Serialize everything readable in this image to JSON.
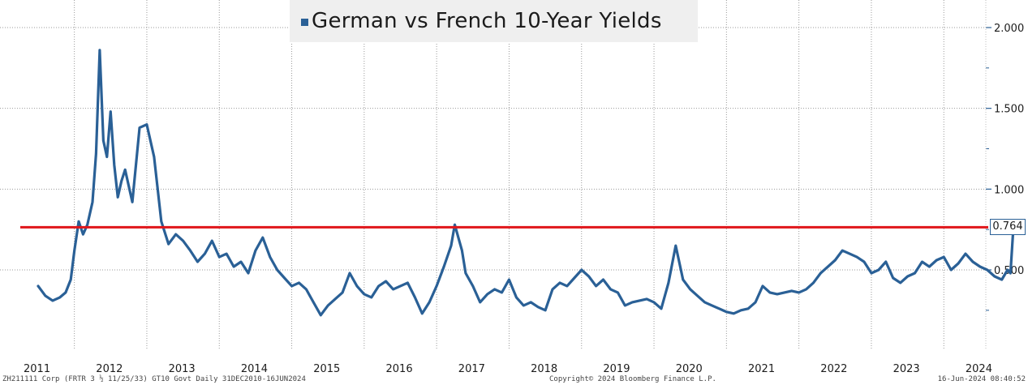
{
  "chart_data": {
    "type": "line",
    "title": "German vs French 10-Year Yields",
    "y_axis_side": "right",
    "ylim": [
      0.0,
      2.1
    ],
    "yticks": [
      "2.000",
      "1.500",
      "1.000",
      "0.500"
    ],
    "ytick_values": [
      2.0,
      1.5,
      1.0,
      0.5
    ],
    "xticks": [
      "2011",
      "2012",
      "2013",
      "2014",
      "2015",
      "2016",
      "2017",
      "2018",
      "2019",
      "2020",
      "2021",
      "2022",
      "2023",
      "2024"
    ],
    "grid": true,
    "reference_line": {
      "value": 0.764,
      "label": "0.764",
      "color": "#e0161a"
    },
    "series": [
      {
        "color": "#2a6096",
        "x": [
          2011.0,
          2011.1,
          2011.2,
          2011.3,
          2011.38,
          2011.45,
          2011.5,
          2011.56,
          2011.62,
          2011.68,
          2011.75,
          2011.8,
          2011.85,
          2011.9,
          2011.95,
          2012.0,
          2012.05,
          2012.1,
          2012.15,
          2012.2,
          2012.3,
          2012.4,
          2012.5,
          2012.6,
          2012.7,
          2012.8,
          2012.9,
          2013.0,
          2013.1,
          2013.2,
          2013.3,
          2013.4,
          2013.5,
          2013.6,
          2013.7,
          2013.8,
          2013.9,
          2014.0,
          2014.1,
          2014.2,
          2014.3,
          2014.4,
          2014.5,
          2014.6,
          2014.7,
          2014.8,
          2014.9,
          2015.0,
          2015.1,
          2015.2,
          2015.3,
          2015.4,
          2015.5,
          2015.6,
          2015.7,
          2015.8,
          2015.9,
          2016.0,
          2016.1,
          2016.2,
          2016.3,
          2016.4,
          2016.5,
          2016.6,
          2016.7,
          2016.75,
          2016.8,
          2016.85,
          2016.9,
          2017.0,
          2017.1,
          2017.2,
          2017.3,
          2017.4,
          2017.5,
          2017.6,
          2017.7,
          2017.8,
          2017.9,
          2018.0,
          2018.1,
          2018.2,
          2018.3,
          2018.4,
          2018.5,
          2018.6,
          2018.7,
          2018.8,
          2018.9,
          2019.0,
          2019.1,
          2019.2,
          2019.3,
          2019.4,
          2019.5,
          2019.6,
          2019.7,
          2019.8,
          2019.9,
          2020.0,
          2020.1,
          2020.2,
          2020.3,
          2020.4,
          2020.5,
          2020.6,
          2020.7,
          2020.8,
          2020.9,
          2021.0,
          2021.1,
          2021.2,
          2021.3,
          2021.4,
          2021.5,
          2021.6,
          2021.7,
          2021.8,
          2021.9,
          2022.0,
          2022.1,
          2022.2,
          2022.3,
          2022.4,
          2022.5,
          2022.6,
          2022.7,
          2022.8,
          2022.9,
          2023.0,
          2023.1,
          2023.2,
          2023.3,
          2023.4,
          2023.5,
          2023.6,
          2023.7,
          2023.8,
          2023.9,
          2024.0,
          2024.1,
          2024.2,
          2024.3,
          2024.38,
          2024.42,
          2024.46
        ],
        "values": [
          0.4,
          0.34,
          0.31,
          0.33,
          0.36,
          0.44,
          0.62,
          0.8,
          0.72,
          0.78,
          0.92,
          1.22,
          1.86,
          1.3,
          1.2,
          1.48,
          1.15,
          0.95,
          1.05,
          1.12,
          0.92,
          1.38,
          1.4,
          1.2,
          0.8,
          0.66,
          0.72,
          0.68,
          0.62,
          0.55,
          0.6,
          0.68,
          0.58,
          0.6,
          0.52,
          0.55,
          0.48,
          0.62,
          0.7,
          0.58,
          0.5,
          0.45,
          0.4,
          0.42,
          0.38,
          0.3,
          0.22,
          0.28,
          0.32,
          0.36,
          0.48,
          0.4,
          0.35,
          0.33,
          0.4,
          0.43,
          0.38,
          0.4,
          0.42,
          0.33,
          0.23,
          0.3,
          0.4,
          0.52,
          0.65,
          0.78,
          0.7,
          0.62,
          0.48,
          0.4,
          0.3,
          0.35,
          0.38,
          0.36,
          0.44,
          0.33,
          0.28,
          0.3,
          0.27,
          0.25,
          0.38,
          0.42,
          0.4,
          0.45,
          0.5,
          0.46,
          0.4,
          0.44,
          0.38,
          0.36,
          0.28,
          0.3,
          0.31,
          0.32,
          0.3,
          0.26,
          0.42,
          0.65,
          0.44,
          0.38,
          0.34,
          0.3,
          0.28,
          0.26,
          0.24,
          0.23,
          0.25,
          0.26,
          0.3,
          0.4,
          0.36,
          0.35,
          0.36,
          0.37,
          0.36,
          0.38,
          0.42,
          0.48,
          0.52,
          0.56,
          0.62,
          0.6,
          0.58,
          0.55,
          0.48,
          0.5,
          0.55,
          0.45,
          0.42,
          0.46,
          0.48,
          0.55,
          0.52,
          0.56,
          0.58,
          0.5,
          0.54,
          0.6,
          0.55,
          0.52,
          0.5,
          0.46,
          0.44,
          0.5,
          0.48,
          0.764
        ]
      }
    ]
  },
  "footer": {
    "left": "ZH211111 Corp (FRTR 3 ½ 11/25/33) GT10  Govt  Daily 31DEC2010-16JUN2024",
    "center": "Copyright© 2024 Bloomberg Finance L.P.",
    "right": "16-Jun-2024 08:40:52"
  }
}
